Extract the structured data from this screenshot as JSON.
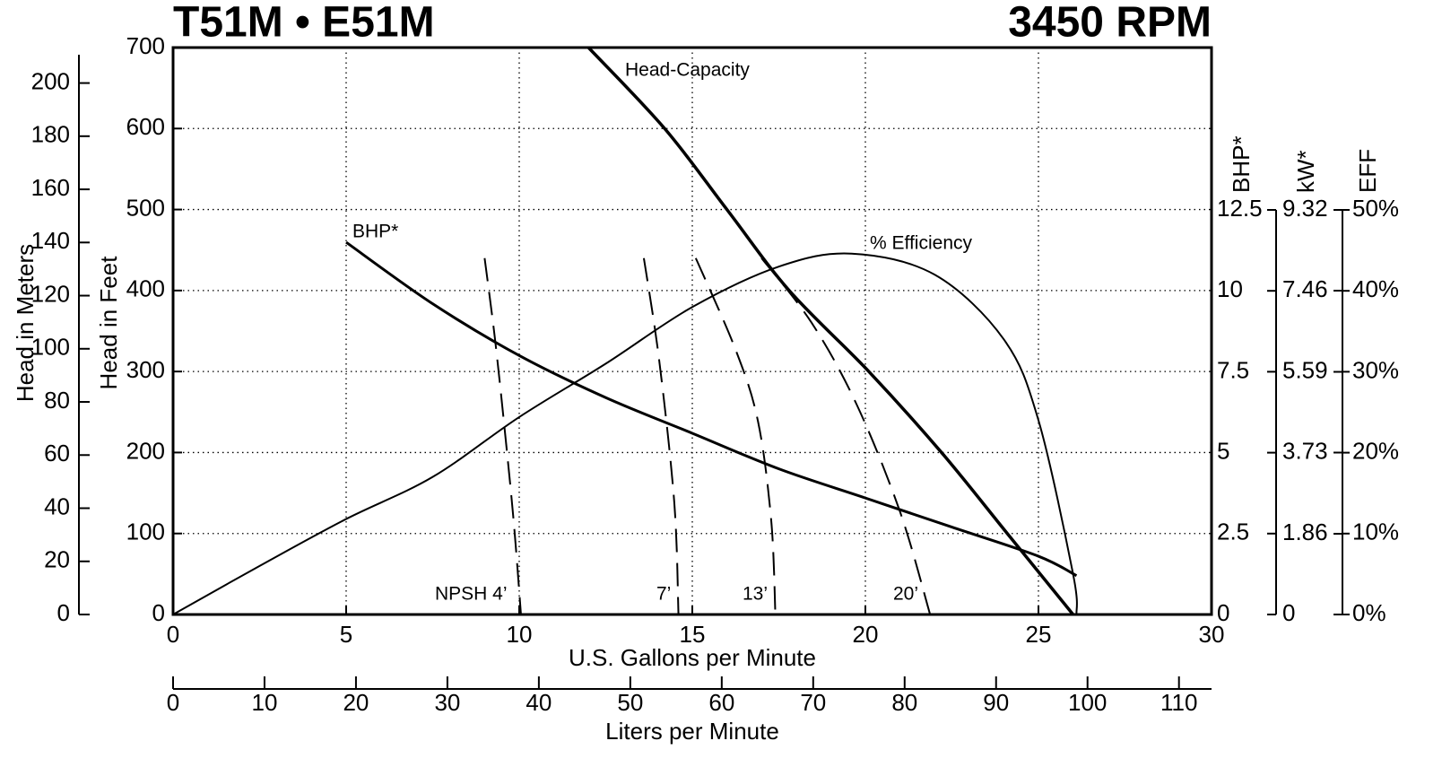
{
  "chart_data": {
    "type": "line",
    "title": "T51M • E51M",
    "subtitle": "3450 RPM",
    "xlabel": "U.S. Gallons per Minute",
    "xlim": [
      0,
      30
    ],
    "xticks": [
      0,
      5,
      10,
      15,
      20,
      25,
      30
    ],
    "x2label": "Liters per Minute",
    "x2lim": [
      0,
      113.56
    ],
    "x2ticks": [
      0,
      10,
      20,
      30,
      40,
      50,
      60,
      70,
      80,
      90,
      100,
      110
    ],
    "ylabel": "Head in Feet",
    "ylim": [
      0,
      700
    ],
    "yticks": [
      0,
      100,
      200,
      300,
      400,
      500,
      600,
      700
    ],
    "ymlabel": "Head in Meters",
    "ymlim": [
      0,
      213.36
    ],
    "ymticks": [
      0,
      20,
      40,
      60,
      80,
      100,
      120,
      140,
      160,
      180,
      200
    ],
    "y2label": "BHP*",
    "y2lim": [
      0,
      12.5
    ],
    "y2ticks": [
      0,
      2.5,
      5,
      7.5,
      10,
      12.5
    ],
    "y3label": "kW*",
    "y3lim": [
      0,
      9.32
    ],
    "y3ticks": [
      0,
      1.86,
      3.73,
      5.59,
      7.46,
      9.32
    ],
    "y4label": "EFF",
    "y4lim": [
      0,
      50
    ],
    "y4ticks": [
      {
        "value": 0,
        "label": "0%"
      },
      {
        "value": 10,
        "label": "10%"
      },
      {
        "value": 20,
        "label": "20%"
      },
      {
        "value": 30,
        "label": "30%"
      },
      {
        "value": 40,
        "label": "40%"
      },
      {
        "value": 50,
        "label": "50%"
      }
    ],
    "grid": true,
    "series": [
      {
        "name": "Head-Capacity",
        "color": "#000000",
        "axis": "y",
        "dashed": false,
        "x": [
          12,
          14.2,
          16,
          17.8,
          20.1,
          22.2,
          24.1,
          26
        ],
        "values": [
          700,
          600,
          500,
          400,
          300,
          200,
          100,
          0
        ]
      },
      {
        "name": "BHP*",
        "color": "#000000",
        "axis": "y2",
        "dashed": false,
        "x": [
          5,
          7.5,
          10,
          12.5,
          15,
          17.5,
          20,
          22.5,
          25,
          26.1
        ],
        "values": [
          11.5,
          9.6,
          8.0,
          6.7,
          5.6,
          4.5,
          3.6,
          2.7,
          1.8,
          1.2
        ]
      },
      {
        "name": "% Efficiency",
        "color": "#000000",
        "axis": "y4",
        "dashed": false,
        "x": [
          0,
          2.5,
          5,
          7.5,
          10,
          12.5,
          15,
          17.5,
          19.6,
          22,
          24,
          25,
          26,
          26.1
        ],
        "values": [
          0,
          6,
          11.8,
          17,
          24.4,
          31,
          38,
          43,
          44.6,
          42,
          34,
          24,
          5,
          0
        ]
      },
      {
        "name": "NPSH 4’",
        "color": "#000000",
        "axis": "y",
        "dashed": true,
        "x": [
          9.0,
          9.3,
          9.6,
          9.85,
          10.05
        ],
        "values": [
          440,
          340,
          220,
          110,
          0
        ]
      },
      {
        "name": "7’",
        "color": "#000000",
        "axis": "y",
        "dashed": true,
        "x": [
          13.6,
          14.04,
          14.48,
          14.6
        ],
        "values": [
          440,
          315,
          138,
          0
        ]
      },
      {
        "name": "13’",
        "color": "#000000",
        "axis": "y",
        "dashed": true,
        "x": [
          15.1,
          16.25,
          16.9,
          17.28,
          17.4
        ],
        "values": [
          440,
          327,
          238,
          116,
          0
        ]
      },
      {
        "name": "20’",
        "color": "#000000",
        "axis": "y",
        "dashed": true,
        "x": [
          17.0,
          18.45,
          19.74,
          21.0,
          21.87
        ],
        "values": [
          440,
          360,
          260,
          127,
          0
        ]
      }
    ]
  }
}
